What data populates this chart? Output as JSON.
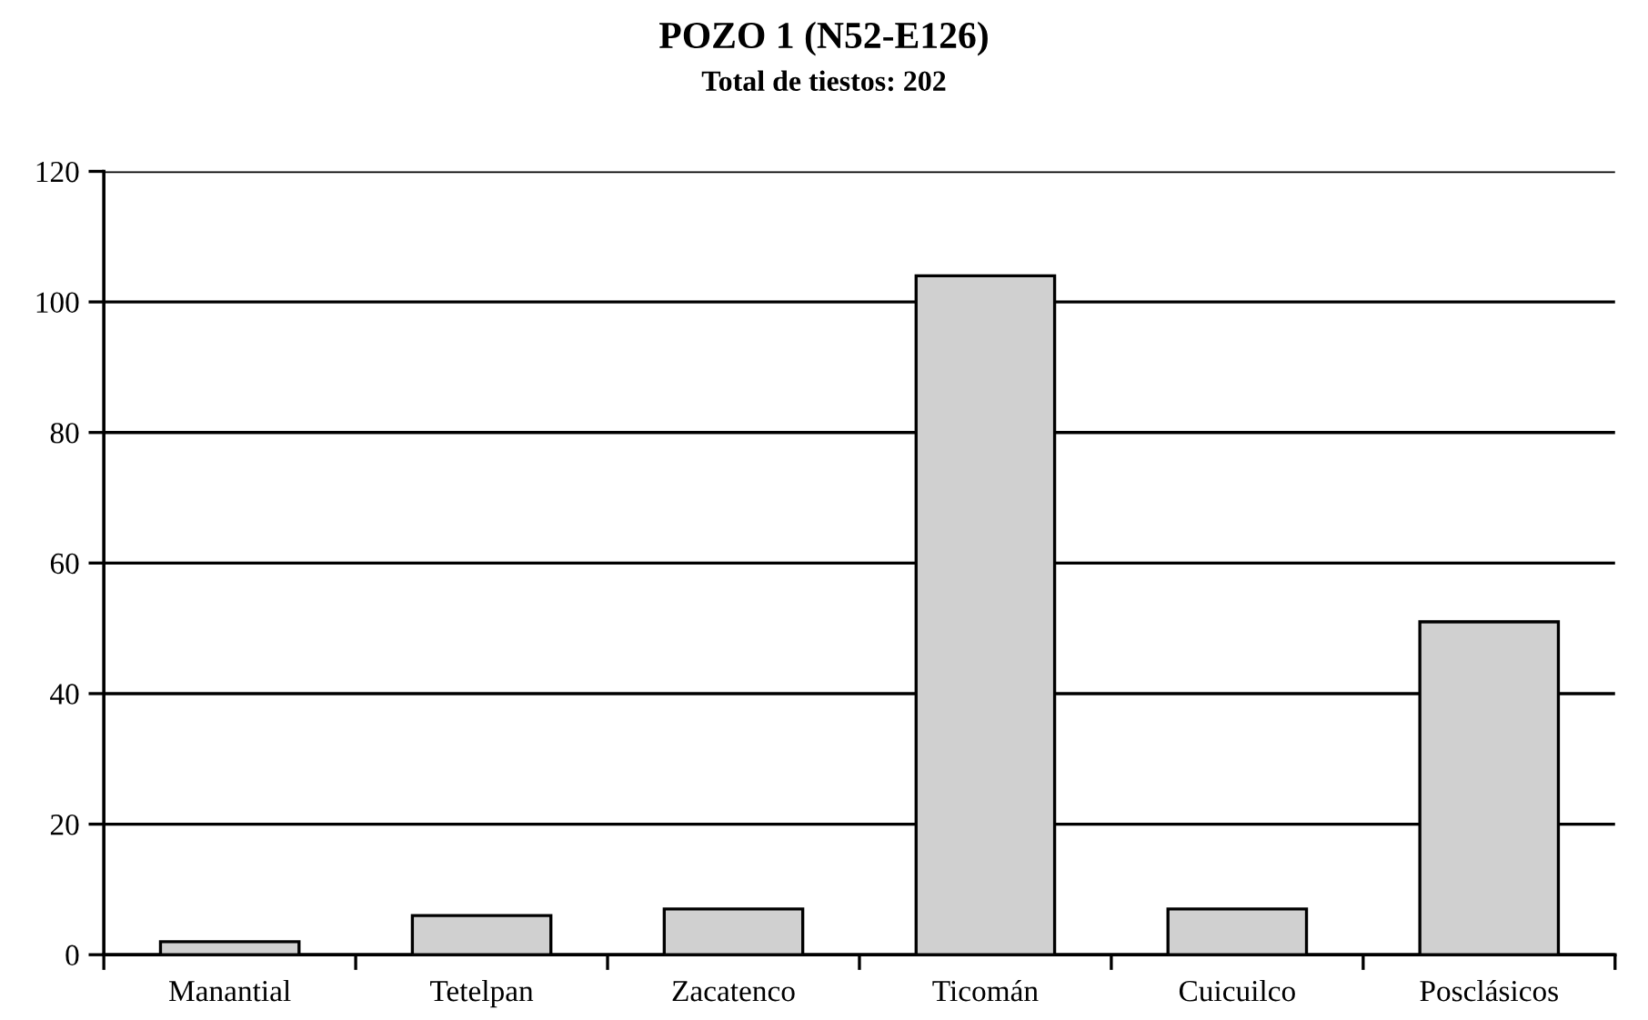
{
  "chart_data": {
    "type": "bar",
    "title": "POZO 1 (N52-E126)",
    "subtitle": "Total de tiestos: 202",
    "categories": [
      "Manantial",
      "Tetelpan",
      "Zacatenco",
      "Ticomán",
      "Cuicuilco",
      "Posclásicos"
    ],
    "values": [
      2,
      6,
      7,
      104,
      7,
      51
    ],
    "color": "#d0d0d0",
    "ylim": [
      0,
      120
    ],
    "yticks": [
      0,
      20,
      40,
      60,
      80,
      100,
      120
    ],
    "grid": "y"
  }
}
